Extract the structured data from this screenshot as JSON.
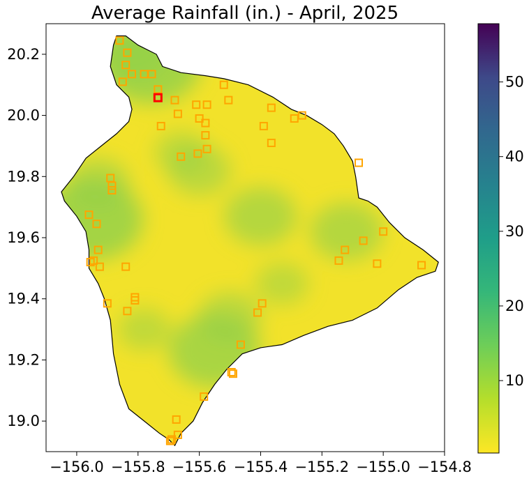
{
  "chart_data": {
    "type": "heatmap",
    "title": "Average Rainfall (in.) - April, 2025",
    "xlabel": "",
    "ylabel": "",
    "xlim": [
      -156.1,
      -154.8
    ],
    "ylim": [
      18.9,
      20.3
    ],
    "x_ticks": [
      -156.0,
      -155.8,
      -155.6,
      -155.4,
      -155.2,
      -155.0,
      -154.8
    ],
    "x_tick_labels": [
      "−156.0",
      "−155.8",
      "−155.6",
      "−155.4",
      "−155.2",
      "−155.0",
      "−154.8"
    ],
    "y_ticks": [
      19.0,
      19.2,
      19.4,
      19.6,
      19.8,
      20.0,
      20.2
    ],
    "y_tick_labels": [
      "19.0",
      "19.2",
      "19.4",
      "19.6",
      "19.8",
      "20.0",
      "20.2"
    ],
    "colorbar": {
      "colormap": "viridis_r",
      "range": [
        0.3,
        57.8
      ],
      "ticks": [
        10,
        20,
        30,
        40,
        50
      ],
      "tick_labels": [
        "10",
        "20",
        "30",
        "40",
        "50"
      ]
    },
    "grid": false,
    "island_outline": [
      [
        -155.87,
        20.26
      ],
      [
        -155.84,
        20.26
      ],
      [
        -155.8,
        20.23
      ],
      [
        -155.74,
        20.2
      ],
      [
        -155.72,
        20.16
      ],
      [
        -155.66,
        20.14
      ],
      [
        -155.58,
        20.13
      ],
      [
        -155.52,
        20.12
      ],
      [
        -155.44,
        20.1
      ],
      [
        -155.36,
        20.06
      ],
      [
        -155.3,
        20.02
      ],
      [
        -155.25,
        20.0
      ],
      [
        -155.2,
        19.97
      ],
      [
        -155.16,
        19.94
      ],
      [
        -155.13,
        19.9
      ],
      [
        -155.1,
        19.85
      ],
      [
        -155.09,
        19.8
      ],
      [
        -155.08,
        19.73
      ],
      [
        -155.05,
        19.72
      ],
      [
        -155.02,
        19.7
      ],
      [
        -154.98,
        19.65
      ],
      [
        -154.93,
        19.6
      ],
      [
        -154.87,
        19.56
      ],
      [
        -154.82,
        19.52
      ],
      [
        -154.83,
        19.49
      ],
      [
        -154.89,
        19.47
      ],
      [
        -154.95,
        19.43
      ],
      [
        -155.02,
        19.37
      ],
      [
        -155.1,
        19.33
      ],
      [
        -155.18,
        19.31
      ],
      [
        -155.26,
        19.28
      ],
      [
        -155.33,
        19.25
      ],
      [
        -155.4,
        19.24
      ],
      [
        -155.46,
        19.22
      ],
      [
        -155.51,
        19.17
      ],
      [
        -155.55,
        19.12
      ],
      [
        -155.59,
        19.06
      ],
      [
        -155.62,
        19.0
      ],
      [
        -155.66,
        18.96
      ],
      [
        -155.68,
        18.92
      ],
      [
        -155.7,
        18.94
      ],
      [
        -155.73,
        18.96
      ],
      [
        -155.78,
        19.0
      ],
      [
        -155.83,
        19.04
      ],
      [
        -155.86,
        19.12
      ],
      [
        -155.88,
        19.22
      ],
      [
        -155.89,
        19.33
      ],
      [
        -155.91,
        19.4
      ],
      [
        -155.93,
        19.45
      ],
      [
        -155.96,
        19.5
      ],
      [
        -155.96,
        19.56
      ],
      [
        -155.97,
        19.62
      ],
      [
        -156.0,
        19.67
      ],
      [
        -156.04,
        19.72
      ],
      [
        -156.05,
        19.75
      ],
      [
        -156.01,
        19.8
      ],
      [
        -155.97,
        19.86
      ],
      [
        -155.92,
        19.9
      ],
      [
        -155.87,
        19.94
      ],
      [
        -155.83,
        19.98
      ],
      [
        -155.82,
        20.02
      ],
      [
        -155.83,
        20.06
      ],
      [
        -155.87,
        20.1
      ],
      [
        -155.89,
        20.16
      ],
      [
        -155.88,
        20.23
      ]
    ],
    "rain_highs": [
      {
        "lon": -155.76,
        "lat": 20.17,
        "value": 9
      },
      {
        "lon": -155.82,
        "lat": 20.21,
        "value": 6
      },
      {
        "lon": -155.95,
        "lat": 19.66,
        "value": 9
      },
      {
        "lon": -155.93,
        "lat": 19.78,
        "value": 5
      },
      {
        "lon": -155.6,
        "lat": 19.82,
        "value": 5
      },
      {
        "lon": -155.4,
        "lat": 19.67,
        "value": 6
      },
      {
        "lon": -155.12,
        "lat": 19.62,
        "value": 6
      },
      {
        "lon": -155.55,
        "lat": 19.23,
        "value": 8
      },
      {
        "lon": -155.5,
        "lat": 19.34,
        "value": 5
      },
      {
        "lon": -155.33,
        "lat": 19.45,
        "value": 4
      },
      {
        "lon": -155.66,
        "lat": 19.88,
        "value": 4
      },
      {
        "lon": -155.78,
        "lat": 19.3,
        "value": 4
      }
    ],
    "stations": [
      [
        -155.86,
        20.245
      ],
      [
        -155.835,
        20.205
      ],
      [
        -155.84,
        20.165
      ],
      [
        -155.82,
        20.135
      ],
      [
        -155.85,
        20.11
      ],
      [
        -155.78,
        20.135
      ],
      [
        -155.755,
        20.135
      ],
      [
        -155.735,
        20.085
      ],
      [
        -155.725,
        19.965
      ],
      [
        -155.68,
        20.05
      ],
      [
        -155.67,
        20.005
      ],
      [
        -155.66,
        19.865
      ],
      [
        -155.61,
        20.035
      ],
      [
        -155.6,
        19.99
      ],
      [
        -155.58,
        19.975
      ],
      [
        -155.58,
        19.935
      ],
      [
        -155.575,
        20.035
      ],
      [
        -155.575,
        19.89
      ],
      [
        -155.605,
        19.875
      ],
      [
        -155.52,
        20.1
      ],
      [
        -155.505,
        20.05
      ],
      [
        -155.39,
        19.965
      ],
      [
        -155.365,
        20.025
      ],
      [
        -155.365,
        19.91
      ],
      [
        -155.29,
        19.99
      ],
      [
        -155.265,
        20.0
      ],
      [
        -155.08,
        19.845
      ],
      [
        -155.02,
        19.515
      ],
      [
        -155.0,
        19.62
      ],
      [
        -155.065,
        19.59
      ],
      [
        -155.125,
        19.56
      ],
      [
        -155.145,
        19.525
      ],
      [
        -154.875,
        19.51
      ],
      [
        -155.96,
        19.675
      ],
      [
        -155.935,
        19.645
      ],
      [
        -155.93,
        19.56
      ],
      [
        -155.955,
        19.52
      ],
      [
        -155.945,
        19.525
      ],
      [
        -155.925,
        19.505
      ],
      [
        -155.89,
        19.795
      ],
      [
        -155.885,
        19.77
      ],
      [
        -155.885,
        19.755
      ],
      [
        -155.84,
        19.505
      ],
      [
        -155.9,
        19.385
      ],
      [
        -155.81,
        19.405
      ],
      [
        -155.81,
        19.395
      ],
      [
        -155.835,
        19.36
      ],
      [
        -155.41,
        19.355
      ],
      [
        -155.395,
        19.385
      ],
      [
        -155.465,
        19.25
      ],
      [
        -155.495,
        19.16
      ],
      [
        -155.49,
        19.155
      ],
      [
        -155.585,
        19.08
      ],
      [
        -155.675,
        19.005
      ],
      [
        -155.67,
        18.955
      ],
      [
        -155.69,
        18.94
      ],
      [
        -155.695,
        18.935
      ]
    ],
    "highlighted_station": [
      -155.735,
      20.058
    ]
  }
}
